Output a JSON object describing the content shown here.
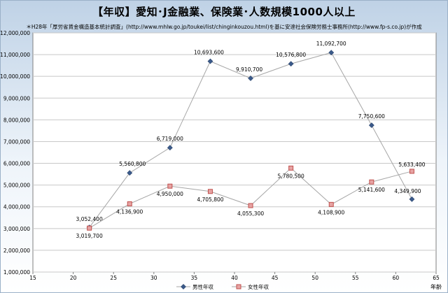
{
  "title": "【年収】愛知･J金融業、保険業･人数規模1000人以上",
  "subtitle": "＊H28年「厚労省賃金構造基本統計調査」(http://www.mhlw.go.jp/toukei/list/chinginkouzou.html)を基に安達社会保険労務士事務所(http://www.fp-s.co.jp)が作成",
  "chart_data": {
    "type": "line",
    "xlabel": "年齢",
    "ylabel": "",
    "x": [
      22,
      27,
      32,
      37,
      42,
      47,
      52,
      57,
      62
    ],
    "xlim": [
      15,
      65
    ],
    "ylim": [
      1000000,
      12000000
    ],
    "x_ticks": [
      "15",
      "20",
      "25",
      "30",
      "35",
      "40",
      "45",
      "50",
      "55",
      "60",
      "65"
    ],
    "y_ticks": [
      "1,000,000",
      "2,000,000",
      "3,000,000",
      "4,000,000",
      "5,000,000",
      "6,000,000",
      "7,000,000",
      "8,000,000",
      "9,000,000",
      "10,000,000",
      "11,000,000",
      "12,000,000"
    ],
    "grid": true,
    "legend_position": "bottom",
    "series": [
      {
        "name": "男性年収",
        "color": "#3b5a8a",
        "marker": "diamond",
        "values": [
          3052400,
          5560800,
          6719000,
          10693600,
          9910700,
          10576800,
          11092700,
          7750600,
          4349900
        ],
        "labels": [
          "3,052,400",
          "5,560,800",
          "6,719,000",
          "10,693,600",
          "9,910,700",
          "10,576,800",
          "11,092,700",
          "7,750,600",
          "4,349,900"
        ]
      },
      {
        "name": "女性年収",
        "color": "#c0504d",
        "marker": "square",
        "values": [
          3019700,
          4136900,
          4950000,
          4705800,
          4055300,
          5780500,
          4108900,
          5141600,
          5633400
        ],
        "labels": [
          "3,019,700",
          "4,136,900",
          "4,950,000",
          "4,705,800",
          "4,055,300",
          "5,780,500",
          "4,108,900",
          "5,141,600",
          "5,633,400"
        ]
      }
    ]
  }
}
